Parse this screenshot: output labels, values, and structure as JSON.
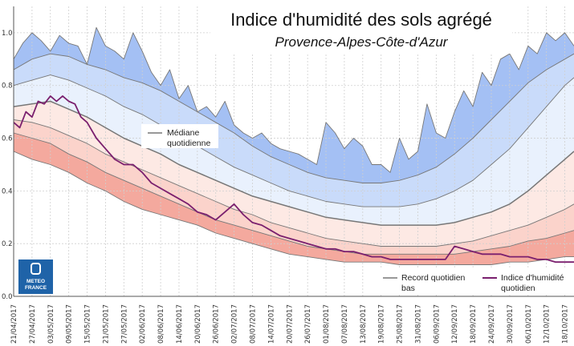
{
  "chart_data": {
    "type": "area",
    "title": "Indice d'humidité des sols agrégé",
    "subtitle": "Provence-Alpes-Côte-d'Azur",
    "xlabel": "",
    "ylabel": "",
    "ylim": [
      0.0,
      1.1
    ],
    "y_ticks": [
      "0.0",
      "0.2",
      "0.4",
      "0.6",
      "0.8",
      "1.0"
    ],
    "grid": true,
    "x_tick_labels": [
      "21/04/2017",
      "27/04/2017",
      "03/05/2017",
      "09/05/2017",
      "15/05/2017",
      "21/05/2017",
      "27/05/2017",
      "02/06/2017",
      "08/06/2017",
      "14/06/2017",
      "20/06/2017",
      "26/06/2017",
      "02/07/2017",
      "08/07/2017",
      "14/07/2017",
      "20/07/2017",
      "26/07/2017",
      "01/08/2017",
      "07/08/2017",
      "13/08/2017",
      "19/08/2017",
      "25/08/2017",
      "31/08/2017",
      "06/09/2017",
      "12/09/2017",
      "18/09/2017",
      "24/09/2017",
      "30/09/2017",
      "06/10/2017",
      "12/10/2017",
      "18/10/2017"
    ],
    "x_days": [
      0,
      6,
      12,
      18,
      24,
      30,
      36,
      42,
      48,
      54,
      60,
      66,
      72,
      78,
      84,
      90,
      96,
      102,
      108,
      114,
      120,
      126,
      132,
      138,
      144,
      150,
      156,
      162,
      168,
      174,
      180
    ],
    "x_range": [
      0,
      183
    ],
    "band_colors": [
      "#f4a99e",
      "#fbd3cb",
      "#fde9e4",
      "#e9f1fd",
      "#c9dbfa",
      "#a4c0f4"
    ],
    "band_edge_color": "#777777",
    "index_color": "#7a1f6e",
    "series": [
      {
        "name": "Record quotidien bas",
        "role": "record_low",
        "x": [
          0,
          6,
          12,
          18,
          24,
          30,
          36,
          42,
          48,
          54,
          60,
          66,
          72,
          78,
          84,
          90,
          96,
          102,
          108,
          114,
          120,
          126,
          132,
          138,
          144,
          150,
          156,
          162,
          168,
          174,
          180,
          183
        ],
        "values": [
          0.55,
          0.52,
          0.5,
          0.47,
          0.43,
          0.4,
          0.36,
          0.33,
          0.31,
          0.29,
          0.27,
          0.24,
          0.22,
          0.2,
          0.18,
          0.16,
          0.15,
          0.14,
          0.13,
          0.13,
          0.13,
          0.12,
          0.12,
          0.12,
          0.12,
          0.12,
          0.12,
          0.13,
          0.13,
          0.14,
          0.15,
          0.15
        ]
      },
      {
        "name": "",
        "role": "decile_1",
        "x": [
          0,
          6,
          12,
          18,
          24,
          30,
          36,
          42,
          48,
          54,
          60,
          66,
          72,
          78,
          84,
          90,
          96,
          102,
          108,
          114,
          120,
          126,
          132,
          138,
          144,
          150,
          156,
          162,
          168,
          174,
          180,
          183
        ],
        "values": [
          0.62,
          0.6,
          0.58,
          0.54,
          0.51,
          0.47,
          0.44,
          0.41,
          0.38,
          0.35,
          0.32,
          0.29,
          0.27,
          0.25,
          0.23,
          0.21,
          0.19,
          0.18,
          0.17,
          0.16,
          0.16,
          0.16,
          0.16,
          0.16,
          0.16,
          0.17,
          0.18,
          0.19,
          0.21,
          0.22,
          0.24,
          0.25
        ]
      },
      {
        "name": "",
        "role": "quintile_1",
        "x": [
          0,
          6,
          12,
          18,
          24,
          30,
          36,
          42,
          48,
          54,
          60,
          66,
          72,
          78,
          84,
          90,
          96,
          102,
          108,
          114,
          120,
          126,
          132,
          138,
          144,
          150,
          156,
          162,
          168,
          174,
          180,
          183
        ],
        "values": [
          0.67,
          0.66,
          0.64,
          0.61,
          0.58,
          0.54,
          0.51,
          0.48,
          0.45,
          0.42,
          0.39,
          0.36,
          0.33,
          0.31,
          0.28,
          0.26,
          0.24,
          0.22,
          0.21,
          0.2,
          0.19,
          0.19,
          0.19,
          0.19,
          0.2,
          0.21,
          0.23,
          0.25,
          0.27,
          0.3,
          0.33,
          0.35
        ]
      },
      {
        "name": "Médiane quotidienne",
        "role": "median",
        "x": [
          0,
          6,
          12,
          18,
          24,
          30,
          36,
          42,
          48,
          54,
          60,
          66,
          72,
          78,
          84,
          90,
          96,
          102,
          108,
          114,
          120,
          126,
          132,
          138,
          144,
          150,
          156,
          162,
          168,
          174,
          180,
          183
        ],
        "values": [
          0.72,
          0.73,
          0.74,
          0.71,
          0.68,
          0.64,
          0.6,
          0.57,
          0.54,
          0.5,
          0.47,
          0.44,
          0.41,
          0.38,
          0.36,
          0.34,
          0.32,
          0.3,
          0.29,
          0.28,
          0.27,
          0.27,
          0.27,
          0.27,
          0.28,
          0.3,
          0.32,
          0.35,
          0.4,
          0.46,
          0.52,
          0.55
        ]
      },
      {
        "name": "",
        "role": "quintile_4",
        "x": [
          0,
          6,
          12,
          18,
          24,
          30,
          36,
          42,
          48,
          54,
          60,
          66,
          72,
          78,
          84,
          90,
          96,
          102,
          108,
          114,
          120,
          126,
          132,
          138,
          144,
          150,
          156,
          162,
          168,
          174,
          180,
          183
        ],
        "values": [
          0.8,
          0.82,
          0.84,
          0.82,
          0.79,
          0.76,
          0.72,
          0.69,
          0.65,
          0.61,
          0.57,
          0.53,
          0.49,
          0.46,
          0.43,
          0.4,
          0.38,
          0.36,
          0.35,
          0.34,
          0.34,
          0.34,
          0.35,
          0.37,
          0.4,
          0.44,
          0.5,
          0.56,
          0.64,
          0.72,
          0.8,
          0.83
        ]
      },
      {
        "name": "",
        "role": "decile_9",
        "x": [
          0,
          6,
          12,
          18,
          24,
          30,
          36,
          42,
          48,
          54,
          60,
          66,
          72,
          78,
          84,
          90,
          96,
          102,
          108,
          114,
          120,
          126,
          132,
          138,
          144,
          150,
          156,
          162,
          168,
          174,
          180,
          183
        ],
        "values": [
          0.86,
          0.9,
          0.92,
          0.91,
          0.88,
          0.86,
          0.83,
          0.81,
          0.78,
          0.74,
          0.7,
          0.66,
          0.62,
          0.57,
          0.53,
          0.5,
          0.47,
          0.45,
          0.44,
          0.43,
          0.43,
          0.44,
          0.46,
          0.49,
          0.54,
          0.6,
          0.67,
          0.74,
          0.81,
          0.86,
          0.9,
          0.92
        ]
      },
      {
        "name": "",
        "role": "record_high",
        "x": [
          0,
          3,
          6,
          9,
          12,
          15,
          18,
          21,
          24,
          27,
          30,
          33,
          36,
          39,
          42,
          45,
          48,
          51,
          54,
          57,
          60,
          63,
          66,
          69,
          72,
          75,
          78,
          81,
          84,
          87,
          90,
          93,
          96,
          99,
          102,
          105,
          108,
          111,
          114,
          117,
          120,
          123,
          126,
          129,
          132,
          135,
          138,
          141,
          144,
          147,
          150,
          153,
          156,
          159,
          162,
          165,
          168,
          171,
          174,
          177,
          180,
          183
        ],
        "values": [
          0.9,
          0.96,
          1.0,
          0.97,
          0.93,
          0.99,
          0.96,
          0.95,
          0.88,
          1.02,
          0.95,
          0.93,
          0.9,
          1.0,
          0.93,
          0.85,
          0.8,
          0.86,
          0.75,
          0.8,
          0.7,
          0.72,
          0.68,
          0.74,
          0.65,
          0.62,
          0.6,
          0.62,
          0.58,
          0.56,
          0.55,
          0.54,
          0.52,
          0.5,
          0.66,
          0.62,
          0.56,
          0.6,
          0.57,
          0.5,
          0.5,
          0.47,
          0.6,
          0.52,
          0.55,
          0.73,
          0.62,
          0.6,
          0.7,
          0.78,
          0.72,
          0.85,
          0.8,
          0.9,
          0.92,
          0.86,
          0.95,
          0.92,
          1.0,
          0.97,
          1.0,
          0.95
        ]
      },
      {
        "name": "Indice d'humidité quotidien",
        "role": "index",
        "x": [
          0,
          2,
          4,
          6,
          8,
          10,
          12,
          14,
          16,
          18,
          20,
          22,
          24,
          27,
          30,
          33,
          36,
          39,
          42,
          45,
          48,
          51,
          54,
          57,
          60,
          63,
          66,
          69,
          72,
          75,
          78,
          81,
          84,
          87,
          90,
          93,
          96,
          99,
          102,
          105,
          108,
          111,
          114,
          117,
          120,
          123,
          126,
          129,
          132,
          135,
          138,
          141,
          144,
          147,
          150,
          153,
          156,
          159,
          162,
          165,
          168,
          171,
          174,
          177,
          180,
          183
        ],
        "values": [
          0.66,
          0.64,
          0.7,
          0.68,
          0.74,
          0.73,
          0.76,
          0.74,
          0.76,
          0.74,
          0.73,
          0.68,
          0.66,
          0.6,
          0.56,
          0.52,
          0.5,
          0.5,
          0.47,
          0.43,
          0.41,
          0.39,
          0.37,
          0.35,
          0.32,
          0.31,
          0.29,
          0.32,
          0.35,
          0.31,
          0.28,
          0.27,
          0.25,
          0.23,
          0.22,
          0.21,
          0.2,
          0.19,
          0.18,
          0.18,
          0.17,
          0.17,
          0.16,
          0.15,
          0.15,
          0.14,
          0.14,
          0.14,
          0.14,
          0.14,
          0.14,
          0.14,
          0.19,
          0.18,
          0.17,
          0.16,
          0.16,
          0.16,
          0.15,
          0.15,
          0.15,
          0.14,
          0.14,
          0.13,
          0.13,
          0.13
        ]
      }
    ]
  },
  "legend": {
    "median": "Médiane quotidienne",
    "record_low": "Record quotidien bas",
    "index": "Indice d'humidité quotidien"
  },
  "logo": {
    "line1": "METEO",
    "line2": "FRANCE"
  }
}
